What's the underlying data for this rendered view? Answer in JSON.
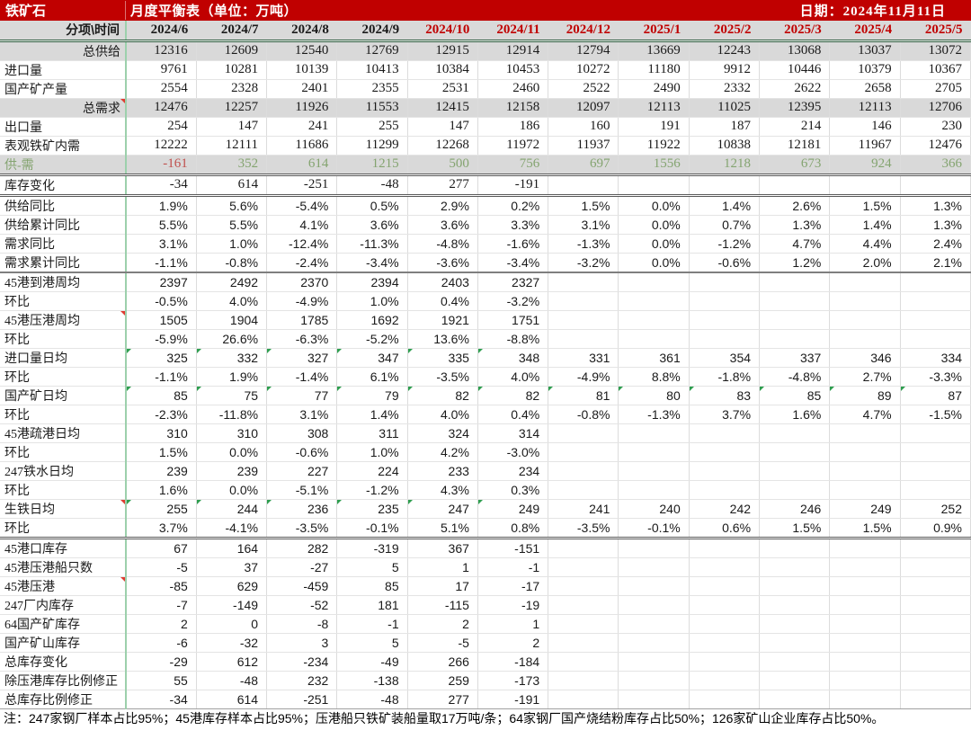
{
  "titlebar": {
    "product": "铁矿石",
    "title": "月度平衡表（单位：万吨）",
    "date": "日期：2024年11月11日"
  },
  "colors": {
    "header_bg": "#C00000",
    "month_red": "#C00000",
    "band_gray": "#D9D9D9",
    "positive_green": "#84A470",
    "negative_red": "#C0504D",
    "freeze_line_green": "#9CD0AC",
    "header_rule_green": "#2B5A3C"
  },
  "header": {
    "corner": "分项\\时间",
    "months": [
      {
        "label": "2024/6",
        "red": false
      },
      {
        "label": "2024/7",
        "red": false
      },
      {
        "label": "2024/8",
        "red": false
      },
      {
        "label": "2024/9",
        "red": false
      },
      {
        "label": "2024/10",
        "red": true
      },
      {
        "label": "2024/11",
        "red": true
      },
      {
        "label": "2024/12",
        "red": true
      },
      {
        "label": "2025/1",
        "red": true
      },
      {
        "label": "2025/2",
        "red": true
      },
      {
        "label": "2025/3",
        "red": true
      },
      {
        "label": "2025/4",
        "red": true
      },
      {
        "label": "2025/5",
        "red": true
      }
    ]
  },
  "rows": [
    {
      "label": "总供给",
      "align": "right",
      "band": true,
      "font": "serif",
      "values": [
        "12316",
        "12609",
        "12540",
        "12769",
        "12915",
        "12914",
        "12794",
        "13669",
        "12243",
        "13068",
        "13037",
        "13072"
      ]
    },
    {
      "label": "进口量",
      "font": "serif",
      "values": [
        "9761",
        "10281",
        "10139",
        "10413",
        "10384",
        "10453",
        "10272",
        "11180",
        "9912",
        "10446",
        "10379",
        "10367"
      ]
    },
    {
      "label": "国产矿产量",
      "font": "serif",
      "values": [
        "2554",
        "2328",
        "2401",
        "2355",
        "2531",
        "2460",
        "2522",
        "2490",
        "2332",
        "2622",
        "2658",
        "2705"
      ]
    },
    {
      "label": "总需求",
      "align": "right",
      "band": true,
      "font": "serif",
      "redCorner": true,
      "values": [
        "12476",
        "12257",
        "11926",
        "11553",
        "12415",
        "12158",
        "12097",
        "12113",
        "11025",
        "12395",
        "12113",
        "12706"
      ]
    },
    {
      "label": "出口量",
      "font": "serif",
      "values": [
        "254",
        "147",
        "241",
        "255",
        "147",
        "186",
        "160",
        "191",
        "187",
        "214",
        "146",
        "230"
      ]
    },
    {
      "label": "表观铁矿内需",
      "font": "serif",
      "values": [
        "12222",
        "12111",
        "11686",
        "11299",
        "12268",
        "11972",
        "11937",
        "11922",
        "10838",
        "12181",
        "11967",
        "12476"
      ]
    },
    {
      "label": "供-需",
      "band": true,
      "font": "serif",
      "labelColor": "green",
      "border": "double",
      "colors": [
        "red",
        "green",
        "green",
        "green",
        "green",
        "green",
        "green",
        "green",
        "green",
        "green",
        "green",
        "green"
      ],
      "values": [
        "-161",
        "352",
        "614",
        "1215",
        "500",
        "756",
        "697",
        "1556",
        "1218",
        "673",
        "924",
        "366"
      ]
    },
    {
      "label": "库存变化",
      "font": "serif",
      "border": "double",
      "values": [
        "-34",
        "614",
        "-251",
        "-48",
        "277",
        "-191",
        "",
        "",
        "",
        "",
        "",
        ""
      ]
    },
    {
      "label": "供给同比",
      "font": "sans",
      "values": [
        "1.9%",
        "5.6%",
        "-5.4%",
        "0.5%",
        "2.9%",
        "0.2%",
        "1.5%",
        "0.0%",
        "1.4%",
        "2.6%",
        "1.5%",
        "1.3%"
      ]
    },
    {
      "label": "供给累计同比",
      "font": "sans",
      "values": [
        "5.5%",
        "5.5%",
        "4.1%",
        "3.6%",
        "3.6%",
        "3.3%",
        "3.1%",
        "0.0%",
        "0.7%",
        "1.3%",
        "1.4%",
        "1.3%"
      ]
    },
    {
      "label": "需求同比",
      "font": "sans",
      "values": [
        "3.1%",
        "1.0%",
        "-12.4%",
        "-11.3%",
        "-4.8%",
        "-1.6%",
        "-1.3%",
        "0.0%",
        "-1.2%",
        "4.7%",
        "4.4%",
        "2.4%"
      ]
    },
    {
      "label": "需求累计同比",
      "font": "sans",
      "border": "single",
      "values": [
        "-1.1%",
        "-0.8%",
        "-2.4%",
        "-3.4%",
        "-3.6%",
        "-3.4%",
        "-3.2%",
        "0.0%",
        "-0.6%",
        "1.2%",
        "2.0%",
        "2.1%"
      ]
    },
    {
      "label": "45港到港周均",
      "font": "sans",
      "values": [
        "2397",
        "2492",
        "2370",
        "2394",
        "2403",
        "2327",
        "",
        "",
        "",
        "",
        "",
        ""
      ]
    },
    {
      "label": "环比",
      "font": "sans",
      "values": [
        "-0.5%",
        "4.0%",
        "-4.9%",
        "1.0%",
        "0.4%",
        "-3.2%",
        "",
        "",
        "",
        "",
        "",
        ""
      ]
    },
    {
      "label": "45港压港周均",
      "font": "sans",
      "redCorner": true,
      "values": [
        "1505",
        "1904",
        "1785",
        "1692",
        "1921",
        "1751",
        "",
        "",
        "",
        "",
        "",
        ""
      ]
    },
    {
      "label": "环比",
      "font": "sans",
      "values": [
        "-5.9%",
        "26.6%",
        "-6.3%",
        "-5.2%",
        "13.6%",
        "-8.8%",
        "",
        "",
        "",
        "",
        "",
        ""
      ]
    },
    {
      "label": "进口量日均",
      "font": "sans",
      "greenCorners": 6,
      "values": [
        "325",
        "332",
        "327",
        "347",
        "335",
        "348",
        "331",
        "361",
        "354",
        "337",
        "346",
        "334"
      ]
    },
    {
      "label": "环比",
      "font": "sans",
      "values": [
        "-1.1%",
        "1.9%",
        "-1.4%",
        "6.1%",
        "-3.5%",
        "4.0%",
        "-4.9%",
        "8.8%",
        "-1.8%",
        "-4.8%",
        "2.7%",
        "-3.3%"
      ]
    },
    {
      "label": "国产矿日均",
      "font": "sans",
      "greenCorners": 12,
      "values": [
        "85",
        "75",
        "77",
        "79",
        "82",
        "82",
        "81",
        "80",
        "83",
        "85",
        "89",
        "87"
      ]
    },
    {
      "label": "环比",
      "font": "sans",
      "values": [
        "-2.3%",
        "-11.8%",
        "3.1%",
        "1.4%",
        "4.0%",
        "0.4%",
        "-0.8%",
        "-1.3%",
        "3.7%",
        "1.6%",
        "4.7%",
        "-1.5%"
      ]
    },
    {
      "label": "45港疏港日均",
      "font": "sans",
      "values": [
        "310",
        "310",
        "308",
        "311",
        "324",
        "314",
        "",
        "",
        "",
        "",
        "",
        ""
      ]
    },
    {
      "label": "环比",
      "font": "sans",
      "values": [
        "1.5%",
        "0.0%",
        "-0.6%",
        "1.0%",
        "4.2%",
        "-3.0%",
        "",
        "",
        "",
        "",
        "",
        ""
      ]
    },
    {
      "label": "247铁水日均",
      "font": "sans",
      "values": [
        "239",
        "239",
        "227",
        "224",
        "233",
        "234",
        "",
        "",
        "",
        "",
        "",
        ""
      ]
    },
    {
      "label": "环比",
      "font": "sans",
      "values": [
        "1.6%",
        "0.0%",
        "-5.1%",
        "-1.2%",
        "4.3%",
        "0.3%",
        "",
        "",
        "",
        "",
        "",
        ""
      ]
    },
    {
      "label": "生铁日均",
      "font": "sans",
      "redCorner": true,
      "greenCorners": 6,
      "values": [
        "255",
        "244",
        "236",
        "235",
        "247",
        "249",
        "241",
        "240",
        "242",
        "246",
        "249",
        "252"
      ]
    },
    {
      "label": "环比",
      "font": "sans",
      "border": "double",
      "values": [
        "3.7%",
        "-4.1%",
        "-3.5%",
        "-0.1%",
        "5.1%",
        "0.8%",
        "-3.5%",
        "-0.1%",
        "0.6%",
        "1.5%",
        "1.5%",
        "0.9%"
      ]
    },
    {
      "label": "45港口库存",
      "font": "sans",
      "values": [
        "67",
        "164",
        "282",
        "-319",
        "367",
        "-151",
        "",
        "",
        "",
        "",
        "",
        ""
      ]
    },
    {
      "label": "45港压港船只数",
      "font": "sans",
      "values": [
        "-5",
        "37",
        "-27",
        "5",
        "1",
        "-1",
        "",
        "",
        "",
        "",
        "",
        ""
      ]
    },
    {
      "label": "45港压港",
      "font": "sans",
      "redCorner": true,
      "values": [
        "-85",
        "629",
        "-459",
        "85",
        "17",
        "-17",
        "",
        "",
        "",
        "",
        "",
        ""
      ]
    },
    {
      "label": "247厂内库存",
      "font": "sans",
      "values": [
        "-7",
        "-149",
        "-52",
        "181",
        "-115",
        "-19",
        "",
        "",
        "",
        "",
        "",
        ""
      ]
    },
    {
      "label": "64国产矿库存",
      "font": "sans",
      "values": [
        "2",
        "0",
        "-8",
        "-1",
        "2",
        "1",
        "",
        "",
        "",
        "",
        "",
        ""
      ]
    },
    {
      "label": "国产矿山库存",
      "font": "sans",
      "values": [
        "-6",
        "-32",
        "3",
        "5",
        "-5",
        "2",
        "",
        "",
        "",
        "",
        "",
        ""
      ]
    },
    {
      "label": "总库存变化",
      "font": "sans",
      "values": [
        "-29",
        "612",
        "-234",
        "-49",
        "266",
        "-184",
        "",
        "",
        "",
        "",
        "",
        ""
      ]
    },
    {
      "label": "除压港库存比例修正",
      "font": "sans",
      "values": [
        "55",
        "-48",
        "232",
        "-138",
        "259",
        "-173",
        "",
        "",
        "",
        "",
        "",
        ""
      ]
    },
    {
      "label": "总库存比例修正",
      "font": "sans",
      "border": "light",
      "values": [
        "-34",
        "614",
        "-251",
        "-48",
        "277",
        "-191",
        "",
        "",
        "",
        "",
        "",
        ""
      ]
    }
  ],
  "footnote": "注：247家钢厂样本占比95%；45港库存样本占比95%；压港船只铁矿装船量取17万吨/条；64家钢厂国产烧结粉库存占比50%；126家矿山企业库存占比50%。"
}
